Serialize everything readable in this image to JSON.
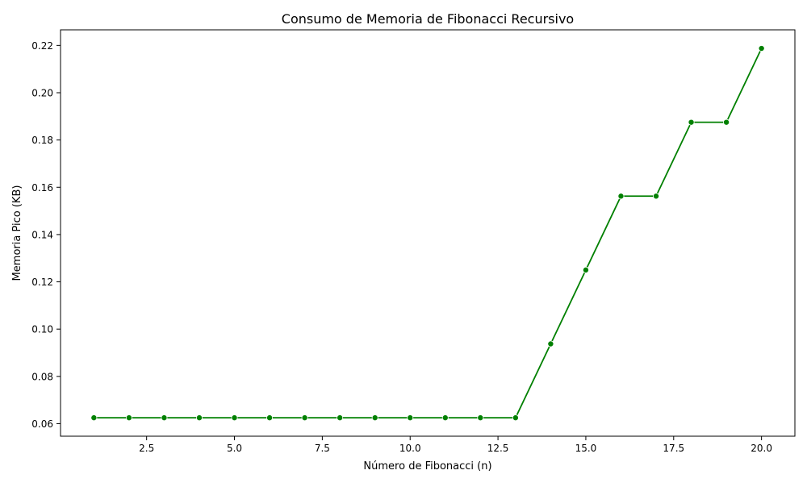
{
  "chart_data": {
    "type": "line",
    "title": "Consumo de Memoria de Fibonacci Recursivo",
    "xlabel": "Número de Fibonacci (n)",
    "ylabel": "Memoria Pico (KB)",
    "xlim": [
      0.05,
      20.95
    ],
    "ylim": [
      0.0547,
      0.2266
    ],
    "x_ticks": [
      2.5,
      5.0,
      7.5,
      10.0,
      12.5,
      15.0,
      17.5,
      20.0
    ],
    "x_tick_labels": [
      "2.5",
      "5.0",
      "7.5",
      "10.0",
      "12.5",
      "15.0",
      "17.5",
      "20.0"
    ],
    "y_ticks": [
      0.06,
      0.08,
      0.1,
      0.12,
      0.14,
      0.16,
      0.18,
      0.2,
      0.22
    ],
    "y_tick_labels": [
      "0.06",
      "0.08",
      "0.10",
      "0.12",
      "0.14",
      "0.16",
      "0.18",
      "0.20",
      "0.22"
    ],
    "grid": false,
    "series": [
      {
        "color": "#008000",
        "marker": "circle",
        "x": [
          1,
          2,
          3,
          4,
          5,
          6,
          7,
          8,
          9,
          10,
          11,
          12,
          13,
          14,
          15,
          16,
          17,
          18,
          19,
          20
        ],
        "y": [
          0.0625,
          0.0625,
          0.0625,
          0.0625,
          0.0625,
          0.0625,
          0.0625,
          0.0625,
          0.0625,
          0.0625,
          0.0625,
          0.0625,
          0.0625,
          0.09375,
          0.125,
          0.15625,
          0.15625,
          0.1875,
          0.1875,
          0.21875
        ]
      }
    ]
  }
}
